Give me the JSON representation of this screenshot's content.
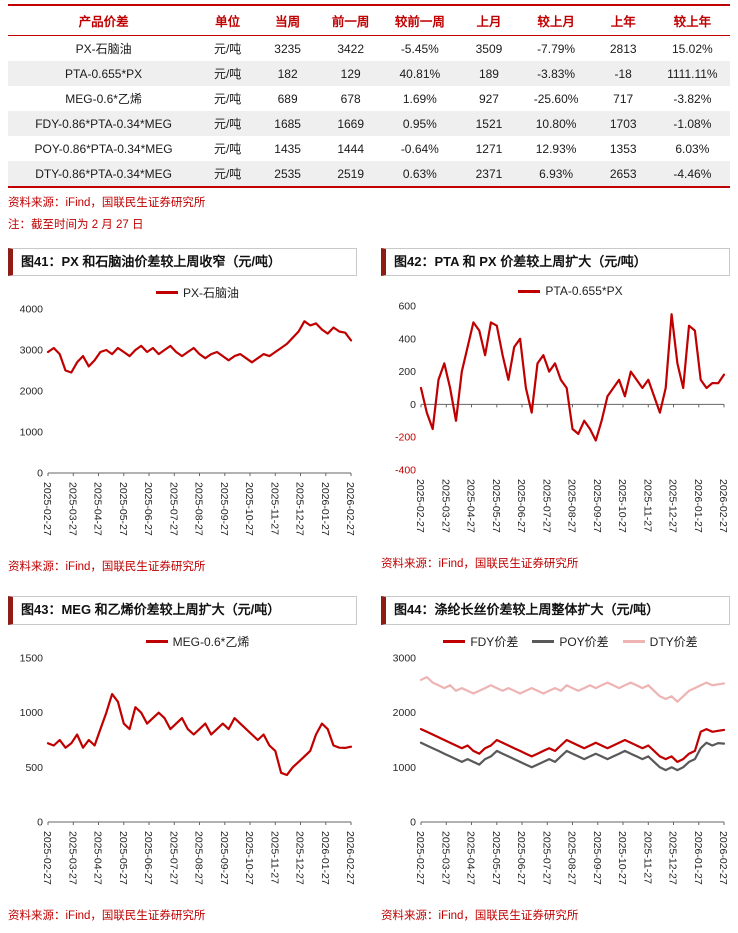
{
  "table": {
    "headers": [
      "产品价差",
      "单位",
      "当周",
      "前一周",
      "较前一周",
      "上月",
      "较上月",
      "上年",
      "较上年"
    ],
    "percent_columns": [
      4,
      6,
      8
    ],
    "rows": [
      [
        "PX-石脑油",
        "元/吨",
        "3235",
        "3422",
        "-5.45%",
        "3509",
        "-7.79%",
        "2813",
        "15.02%"
      ],
      [
        "PTA-0.655*PX",
        "元/吨",
        "182",
        "129",
        "40.81%",
        "189",
        "-3.83%",
        "-18",
        "1111.11%"
      ],
      [
        "MEG-0.6*乙烯",
        "元/吨",
        "689",
        "678",
        "1.69%",
        "927",
        "-25.60%",
        "717",
        "-3.82%"
      ],
      [
        "FDY-0.86*PTA-0.34*MEG",
        "元/吨",
        "1685",
        "1669",
        "0.95%",
        "1521",
        "10.80%",
        "1703",
        "-1.08%"
      ],
      [
        "POY-0.86*PTA-0.34*MEG",
        "元/吨",
        "1435",
        "1444",
        "-0.64%",
        "1271",
        "12.93%",
        "1353",
        "6.03%"
      ],
      [
        "DTY-0.86*PTA-0.34*MEG",
        "元/吨",
        "2535",
        "2519",
        "0.63%",
        "2371",
        "6.93%",
        "2653",
        "-4.46%"
      ]
    ],
    "source": "资料来源：iFind，国联民生证券研究所",
    "note": "注：截至时间为 2 月 27 日"
  },
  "colors": {
    "accent_red": "#c00000",
    "positive_pct": "#e10000",
    "negative_pct": "#00a050",
    "poy_gray": "#595959",
    "dty_pink": "#eeb4b4"
  },
  "chart_source": "资料来源：iFind，国联民生证券研究所",
  "chart_data": [
    {
      "type": "line",
      "title": "图41：PX 和石脑油价差较上周收窄（元/吨）",
      "ylim": [
        0,
        4000
      ],
      "yticks": [
        0,
        1000,
        2000,
        3000,
        4000
      ],
      "grid": false,
      "legend_position": "top",
      "x_tick_labels": [
        "2025-02-27",
        "2025-03-27",
        "2025-04-27",
        "2025-05-27",
        "2025-06-27",
        "2025-07-27",
        "2025-08-27",
        "2025-09-27",
        "2025-10-27",
        "2025-11-27",
        "2025-12-27",
        "2026-01-27",
        "2026-02-27"
      ],
      "series": [
        {
          "name": "PX-石脑油",
          "color": "#c00000",
          "values": [
            2950,
            3050,
            2900,
            2500,
            2450,
            2700,
            2850,
            2600,
            2750,
            2950,
            3000,
            2900,
            3050,
            2950,
            2850,
            3000,
            3100,
            2950,
            3050,
            2900,
            3000,
            3100,
            2950,
            2850,
            2950,
            3050,
            2900,
            2800,
            2900,
            2950,
            2850,
            2750,
            2850,
            2900,
            2800,
            2700,
            2800,
            2900,
            2850,
            2950,
            3050,
            3150,
            3300,
            3450,
            3700,
            3600,
            3650,
            3500,
            3400,
            3550,
            3450,
            3422,
            3235
          ]
        }
      ],
      "source": "资料来源：iFind，国联民生证券研究所"
    },
    {
      "type": "line",
      "title": "图42：PTA 和 PX 价差较上周扩大（元/吨）",
      "ylim": [
        -400,
        600
      ],
      "yticks": [
        -400,
        -200,
        0,
        200,
        400,
        600
      ],
      "grid": false,
      "legend_position": "top",
      "x_tick_labels": [
        "2025-02-27",
        "2025-03-27",
        "2025-04-27",
        "2025-05-27",
        "2025-06-27",
        "2025-07-27",
        "2025-08-27",
        "2025-09-27",
        "2025-10-27",
        "2025-11-27",
        "2025-12-27",
        "2026-01-27",
        "2026-02-27"
      ],
      "series": [
        {
          "name": "PTA-0.655*PX",
          "color": "#c00000",
          "values": [
            100,
            -50,
            -150,
            150,
            250,
            100,
            -100,
            200,
            350,
            500,
            450,
            300,
            500,
            480,
            300,
            150,
            350,
            400,
            100,
            -50,
            250,
            300,
            200,
            250,
            150,
            100,
            -150,
            -180,
            -100,
            -150,
            -220,
            -100,
            50,
            100,
            150,
            50,
            200,
            150,
            100,
            150,
            50,
            -50,
            100,
            550,
            250,
            100,
            480,
            450,
            150,
            100,
            130,
            129,
            182
          ]
        }
      ],
      "source": "资料来源：iFind，国联民生证券研究所"
    },
    {
      "type": "line",
      "title": "图43：MEG 和乙烯价差较上周扩大（元/吨）",
      "ylim": [
        0,
        1500
      ],
      "yticks": [
        0,
        500,
        1000,
        1500
      ],
      "grid": false,
      "legend_position": "top",
      "x_tick_labels": [
        "2025-02-27",
        "2025-03-27",
        "2025-04-27",
        "2025-05-27",
        "2025-06-27",
        "2025-07-27",
        "2025-08-27",
        "2025-09-27",
        "2025-10-27",
        "2025-11-27",
        "2025-12-27",
        "2026-01-27",
        "2026-02-27"
      ],
      "series": [
        {
          "name": "MEG-0.6*乙烯",
          "color": "#c00000",
          "values": [
            720,
            700,
            750,
            680,
            720,
            800,
            680,
            750,
            700,
            850,
            1000,
            1170,
            1100,
            900,
            850,
            1050,
            1000,
            900,
            950,
            1000,
            950,
            850,
            900,
            950,
            850,
            800,
            850,
            900,
            800,
            850,
            900,
            850,
            950,
            900,
            850,
            800,
            750,
            800,
            700,
            650,
            450,
            430,
            500,
            550,
            600,
            650,
            800,
            900,
            850,
            700,
            680,
            678,
            689
          ]
        }
      ],
      "source": "资料来源：iFind，国联民生证券研究所"
    },
    {
      "type": "line",
      "title": "图44：涤纶长丝价差较上周整体扩大（元/吨）",
      "ylim": [
        0,
        3000
      ],
      "yticks": [
        0,
        1000,
        2000,
        3000
      ],
      "grid": false,
      "legend_position": "top",
      "x_tick_labels": [
        "2025-02-27",
        "2025-03-27",
        "2025-04-27",
        "2025-05-27",
        "2025-06-27",
        "2025-07-27",
        "2025-08-27",
        "2025-09-27",
        "2025-10-27",
        "2025-11-27",
        "2025-12-27",
        "2026-01-27",
        "2026-02-27"
      ],
      "series": [
        {
          "name": "FDY价差",
          "color": "#c00000",
          "values": [
            1700,
            1650,
            1600,
            1550,
            1500,
            1450,
            1400,
            1350,
            1400,
            1300,
            1250,
            1350,
            1400,
            1500,
            1450,
            1400,
            1350,
            1300,
            1250,
            1200,
            1250,
            1300,
            1350,
            1300,
            1400,
            1500,
            1450,
            1400,
            1350,
            1400,
            1450,
            1400,
            1350,
            1400,
            1450,
            1500,
            1450,
            1400,
            1350,
            1400,
            1300,
            1200,
            1150,
            1200,
            1100,
            1150,
            1250,
            1300,
            1650,
            1700,
            1650,
            1669,
            1685
          ]
        },
        {
          "name": "POY价差",
          "color": "#595959",
          "values": [
            1450,
            1400,
            1350,
            1300,
            1250,
            1200,
            1150,
            1100,
            1150,
            1100,
            1050,
            1150,
            1200,
            1300,
            1250,
            1200,
            1150,
            1100,
            1050,
            1000,
            1050,
            1100,
            1150,
            1100,
            1200,
            1300,
            1250,
            1200,
            1150,
            1200,
            1250,
            1200,
            1150,
            1200,
            1250,
            1300,
            1250,
            1200,
            1150,
            1200,
            1100,
            1000,
            950,
            1000,
            950,
            1000,
            1100,
            1150,
            1350,
            1450,
            1400,
            1444,
            1435
          ]
        },
        {
          "name": "DTY价差",
          "color": "#eeb4b4",
          "values": [
            2600,
            2650,
            2550,
            2500,
            2450,
            2500,
            2400,
            2450,
            2400,
            2350,
            2400,
            2450,
            2500,
            2450,
            2400,
            2450,
            2400,
            2350,
            2400,
            2450,
            2400,
            2350,
            2400,
            2450,
            2400,
            2500,
            2450,
            2400,
            2450,
            2500,
            2450,
            2500,
            2550,
            2500,
            2450,
            2500,
            2550,
            2500,
            2450,
            2500,
            2400,
            2300,
            2250,
            2300,
            2200,
            2300,
            2400,
            2450,
            2500,
            2550,
            2500,
            2519,
            2535
          ]
        }
      ],
      "source": "资料来源：iFind，国联民生证券研究所"
    }
  ]
}
